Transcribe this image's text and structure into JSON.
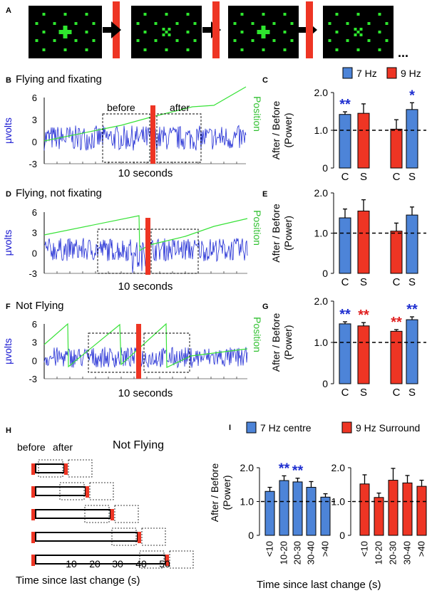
{
  "panel_letters": {
    "a": "A",
    "b": "B",
    "c": "C",
    "d": "D",
    "e": "E",
    "f": "F",
    "g": "G",
    "h": "H",
    "i": "I"
  },
  "ellipsis": "...",
  "stim_sequence": [
    "cross",
    "checker",
    "cross",
    "checker"
  ],
  "traces": {
    "b": {
      "title": "Flying and fixating",
      "before": "before",
      "after": "after",
      "x_label": "10 seconds",
      "y_label": "μvolts",
      "right_label": "Position",
      "yticks": [
        "6",
        "3",
        "0",
        "-3"
      ]
    },
    "d": {
      "title": "Flying, not fixating",
      "x_label": "10 seconds",
      "y_label": "μvolts",
      "right_label": "Position",
      "yticks": [
        "6",
        "3",
        "0",
        "-3"
      ]
    },
    "f": {
      "title": "Not Flying",
      "x_label": "10 seconds",
      "y_label": "μvolts",
      "right_label": "Position",
      "yticks": [
        "6",
        "3",
        "0",
        "-3"
      ]
    }
  },
  "legend_top": [
    {
      "label": "7 Hz",
      "color": "#4d84d8"
    },
    {
      "label": "9 Hz",
      "color": "#ee3524"
    }
  ],
  "legend_bottom": [
    {
      "label": "7 Hz centre",
      "color": "#4d84d8"
    },
    {
      "label": "9 Hz Surround",
      "color": "#ee3524"
    }
  ],
  "bar_y_label_1": "After / Before",
  "bar_y_label_2": "(Power)",
  "bar_yticks": [
    "2.0",
    "1.0",
    "0"
  ],
  "cs_labels": [
    "C",
    "S",
    "C",
    "S"
  ],
  "timeline": {
    "before": "before",
    "after": "after",
    "title": "Not Flying",
    "ticks": [
      "10",
      "20",
      "30",
      "40",
      "50"
    ],
    "x_label": "Time since last change (s)"
  },
  "bins": [
    "<10",
    "10-20",
    "20-30",
    "30-40",
    ">40"
  ],
  "bins_x_label": "Time since last change (s)",
  "chart_data": [
    {
      "type": "bar",
      "panel": "C",
      "categories": [
        "C",
        "S",
        "C",
        "S"
      ],
      "series_colors": [
        "#4d84d8",
        "#ee3524",
        "#ee3524",
        "#4d84d8"
      ],
      "values": [
        1.42,
        1.45,
        1.03,
        1.55
      ],
      "errors": [
        0.07,
        0.25,
        0.25,
        0.18
      ],
      "significance": [
        {
          "text": "**",
          "color": "#2030d0"
        },
        {
          "text": "",
          "color": ""
        },
        {
          "text": "",
          "color": ""
        },
        {
          "text": "*",
          "color": "#2030d0"
        }
      ],
      "ylim": [
        0,
        2.0
      ],
      "baseline": 1.0,
      "ylabel": "After / Before (Power)"
    },
    {
      "type": "bar",
      "panel": "E",
      "categories": [
        "C",
        "S",
        "C",
        "S"
      ],
      "series_colors": [
        "#4d84d8",
        "#ee3524",
        "#ee3524",
        "#4d84d8"
      ],
      "values": [
        1.38,
        1.55,
        1.05,
        1.45
      ],
      "errors": [
        0.22,
        0.28,
        0.2,
        0.2
      ],
      "significance": [
        {
          "text": "",
          "color": ""
        },
        {
          "text": "",
          "color": ""
        },
        {
          "text": "",
          "color": ""
        },
        {
          "text": "",
          "color": ""
        }
      ],
      "ylim": [
        0,
        2.0
      ],
      "baseline": 1.0,
      "ylabel": "After / Before (Power)"
    },
    {
      "type": "bar",
      "panel": "G",
      "categories": [
        "C",
        "S",
        "C",
        "S"
      ],
      "series_colors": [
        "#4d84d8",
        "#ee3524",
        "#ee3524",
        "#4d84d8"
      ],
      "values": [
        1.45,
        1.4,
        1.27,
        1.55
      ],
      "errors": [
        0.05,
        0.08,
        0.04,
        0.07
      ],
      "significance": [
        {
          "text": "**",
          "color": "#2030d0"
        },
        {
          "text": "**",
          "color": "#e02020"
        },
        {
          "text": "**",
          "color": "#e02020"
        },
        {
          "text": "**",
          "color": "#2030d0"
        }
      ],
      "ylim": [
        0,
        2.0
      ],
      "baseline": 1.0,
      "ylabel": "After / Before (Power)"
    },
    {
      "type": "bar",
      "panel": "I-left",
      "name": "7 Hz centre",
      "color": "#4d84d8",
      "categories": [
        "<10",
        "10-20",
        "20-30",
        "30-40",
        ">40"
      ],
      "values": [
        1.3,
        1.62,
        1.58,
        1.42,
        1.13
      ],
      "errors": [
        0.12,
        0.14,
        0.11,
        0.17,
        0.1
      ],
      "significance": [
        {
          "text": "",
          "color": ""
        },
        {
          "text": "**",
          "color": "#2030d0"
        },
        {
          "text": "**",
          "color": "#2030d0"
        },
        {
          "text": "",
          "color": ""
        },
        {
          "text": "",
          "color": ""
        }
      ],
      "ylim": [
        0,
        2.0
      ],
      "baseline": 1.0,
      "xlabel": "Time since last change (s)",
      "ylabel": "After / Before (Power)"
    },
    {
      "type": "bar",
      "panel": "I-right",
      "name": "9 Hz Surround",
      "color": "#ee3524",
      "categories": [
        "<10",
        "10-20",
        "20-30",
        "30-40",
        ">40"
      ],
      "values": [
        1.52,
        1.12,
        1.63,
        1.55,
        1.45
      ],
      "errors": [
        0.27,
        0.13,
        0.35,
        0.22,
        0.18
      ],
      "significance": [
        {
          "text": "",
          "color": ""
        },
        {
          "text": "",
          "color": ""
        },
        {
          "text": "",
          "color": ""
        },
        {
          "text": "",
          "color": ""
        },
        {
          "text": "",
          "color": ""
        }
      ],
      "ylim": [
        0,
        2.0
      ],
      "baseline": 1.0,
      "xlabel": "Time since last change (s)"
    }
  ]
}
